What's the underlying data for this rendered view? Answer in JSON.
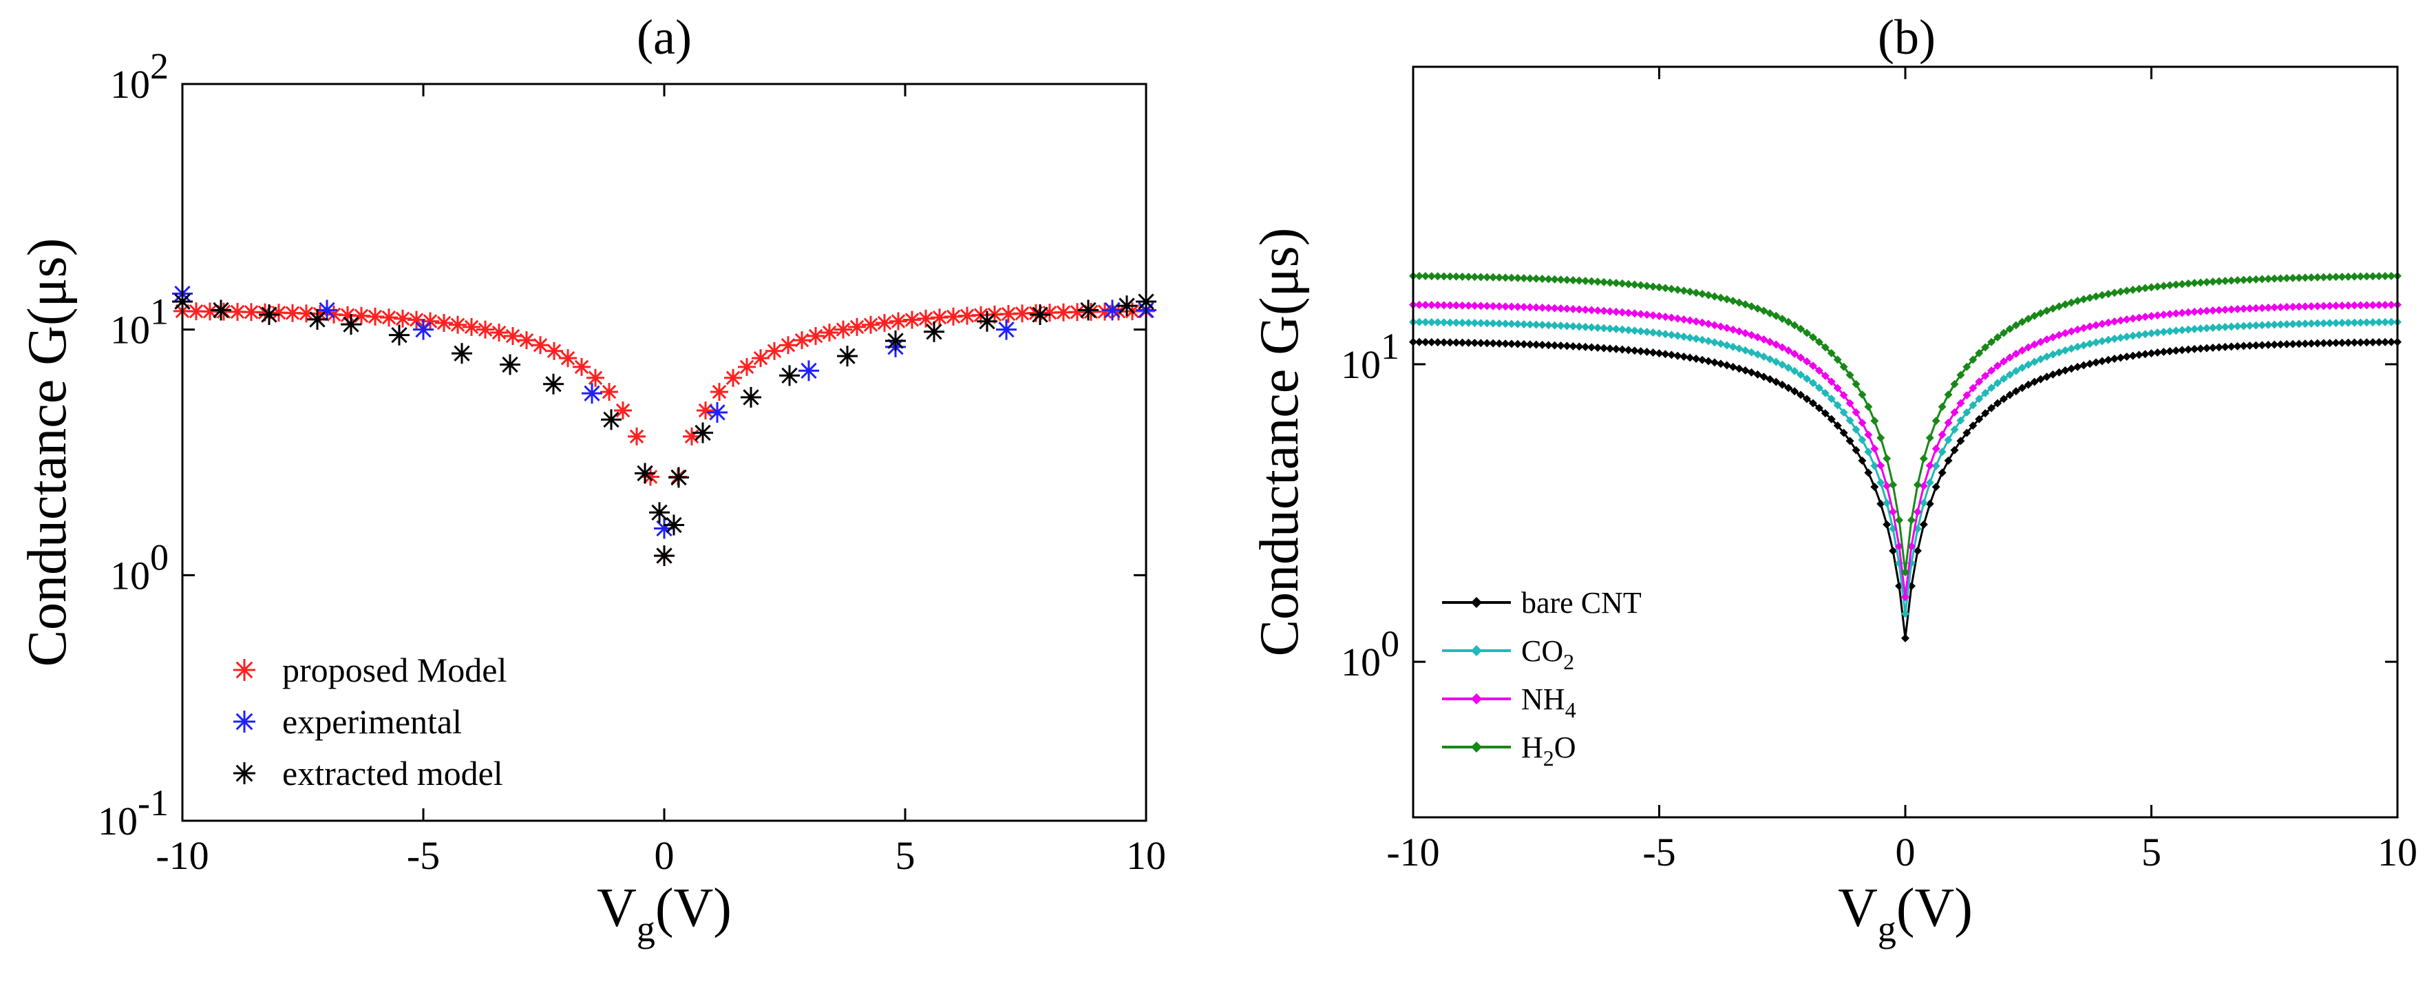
{
  "chart_data": [
    {
      "type": "scatter",
      "title": "(a)",
      "xlabel": "V",
      "xlabel_sub": "g",
      "xlabel_suffix": "(V)",
      "ylabel": "Conductance G(μs)",
      "yscale": "log",
      "xlim": [
        -10,
        10
      ],
      "ylim": [
        0.1,
        100
      ],
      "xticks": [
        "-10",
        "-5",
        "0",
        "5",
        "10"
      ],
      "yticks": [
        {
          "value": 0.1,
          "base": "10",
          "exp": "-1"
        },
        {
          "value": 1,
          "base": "10",
          "exp": "0"
        },
        {
          "value": 10,
          "base": "10",
          "exp": "1"
        },
        {
          "value": 100,
          "base": "10",
          "exp": "2"
        }
      ],
      "legend_position": "bottom-left",
      "series": [
        {
          "name": "proposed Model",
          "marker": "asterisk",
          "color": "#ff2020",
          "model": {
            "gmax": 12,
            "gmin": 1.2,
            "width": 2.2,
            "n": 71
          }
        },
        {
          "name": "experimental",
          "marker": "asterisk",
          "color": "#2020ff",
          "x": [
            -10,
            -7,
            -5,
            -1.5,
            0,
            1.1,
            3,
            4.8,
            7.1,
            9.3,
            10
          ],
          "y": [
            14,
            12,
            10,
            5.5,
            1.55,
            4.6,
            6.8,
            8.5,
            10,
            12,
            12
          ]
        },
        {
          "name": "extracted model",
          "marker": "asterisk",
          "color": "#000000",
          "x": [
            -10,
            -9.2,
            -8.2,
            -7.2,
            -6.5,
            -5.5,
            -4.2,
            -3.2,
            -2.3,
            -1.1,
            -0.4,
            -0.1,
            0,
            0.2,
            0.3,
            0.8,
            1.8,
            2.6,
            3.8,
            4.8,
            5.6,
            6.7,
            7.8,
            8.8,
            9.6,
            10
          ],
          "y": [
            13,
            12,
            11.5,
            11,
            10.5,
            9.5,
            8,
            7.2,
            6,
            4.3,
            2.6,
            1.8,
            1.2,
            1.6,
            2.5,
            3.8,
            5.3,
            6.5,
            7.8,
            9,
            9.8,
            10.8,
            11.5,
            12,
            12.5,
            13
          ]
        }
      ]
    },
    {
      "type": "line",
      "title": "(b)",
      "xlabel": "V",
      "xlabel_sub": "g",
      "xlabel_suffix": "(V)",
      "ylabel": "Conductance G(μs)",
      "yscale": "log",
      "xlim": [
        -10,
        10
      ],
      "ylim": [
        0.3,
        100
      ],
      "xticks": [
        "-10",
        "-5",
        "0",
        "5",
        "10"
      ],
      "yticks": [
        {
          "value": 1,
          "base": "10",
          "exp": "0"
        },
        {
          "value": 10,
          "base": "10",
          "exp": "1"
        }
      ],
      "legend_position": "bottom-left",
      "series": [
        {
          "name": "bare CNT",
          "name_main": "bare CNT",
          "name_sub": "",
          "name_tail": "",
          "color": "#000000",
          "gmax": 12,
          "gmin": 1.2
        },
        {
          "name": "CO2",
          "name_main": "CO",
          "name_sub": "2",
          "name_tail": "",
          "color": "#20b8b8",
          "gmax": 14,
          "gmin": 1.45
        },
        {
          "name": "NH4",
          "name_main": "NH",
          "name_sub": "4",
          "name_tail": "",
          "color": "#ee00ee",
          "gmax": 16,
          "gmin": 1.65
        },
        {
          "name": "H2O",
          "name_main": "H",
          "name_sub": "2",
          "name_tail": "O",
          "color": "#188818",
          "gmax": 20,
          "gmin": 2.0
        }
      ],
      "model": {
        "width": 2.2,
        "n": 161
      }
    }
  ]
}
